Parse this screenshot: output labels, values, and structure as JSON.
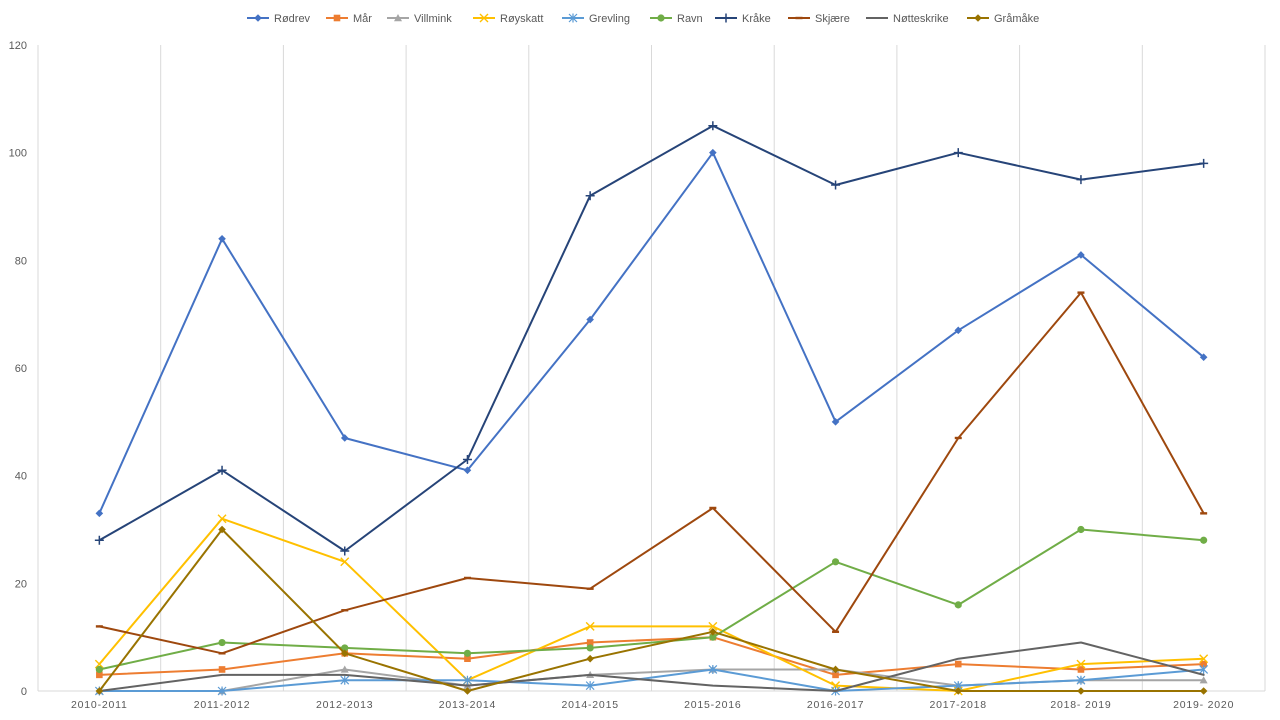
{
  "chart_data": {
    "type": "line",
    "title": "",
    "xlabel": "",
    "ylabel": "",
    "ylim": [
      0,
      120
    ],
    "yticks": [
      0,
      20,
      40,
      60,
      80,
      100,
      120
    ],
    "grid": "vertical",
    "legend_position": "top",
    "categories": [
      "2010-2011",
      "2011-2012",
      "2012-2013",
      "2013-2014",
      "2014-2015",
      "2015-2016",
      "2016-2017",
      "2017-2018",
      "2018- 2019",
      "2019- 2020"
    ],
    "series": [
      {
        "name": "Rødrev",
        "color": "#4472C4",
        "marker": "diamond",
        "values": [
          33,
          84,
          47,
          41,
          69,
          100,
          50,
          67,
          81,
          62
        ]
      },
      {
        "name": "Mår",
        "color": "#ED7D31",
        "marker": "square",
        "values": [
          3,
          4,
          7,
          6,
          9,
          10,
          3,
          5,
          4,
          5
        ]
      },
      {
        "name": "Villmink",
        "color": "#A5A5A5",
        "marker": "triangle",
        "values": [
          0,
          0,
          4,
          1,
          3,
          4,
          4,
          1,
          2,
          2
        ]
      },
      {
        "name": "Røyskatt",
        "color": "#FFC000",
        "marker": "x",
        "values": [
          5,
          32,
          24,
          2,
          12,
          12,
          1,
          0,
          5,
          6
        ]
      },
      {
        "name": "Grevling",
        "color": "#5B9BD5",
        "marker": "star",
        "values": [
          0,
          0,
          2,
          2,
          1,
          4,
          0,
          1,
          2,
          4
        ]
      },
      {
        "name": "Ravn",
        "color": "#70AD47",
        "marker": "circle",
        "values": [
          4,
          9,
          8,
          7,
          8,
          10,
          24,
          16,
          30,
          28
        ]
      },
      {
        "name": "Kråke",
        "color": "#264478",
        "marker": "plus",
        "values": [
          28,
          41,
          26,
          43,
          92,
          105,
          94,
          100,
          95,
          98
        ]
      },
      {
        "name": "Skjære",
        "color": "#9E480E",
        "marker": "dash",
        "values": [
          12,
          7,
          15,
          21,
          19,
          34,
          11,
          47,
          74,
          33
        ]
      },
      {
        "name": "Nøtteskrike",
        "color": "#636363",
        "marker": "none",
        "values": [
          0,
          3,
          3,
          1,
          3,
          1,
          0,
          6,
          9,
          3
        ]
      },
      {
        "name": "Gråmåke",
        "color": "#997300",
        "marker": "diamond",
        "values": [
          0,
          30,
          7,
          0,
          6,
          11,
          4,
          0,
          0,
          0
        ]
      }
    ]
  }
}
